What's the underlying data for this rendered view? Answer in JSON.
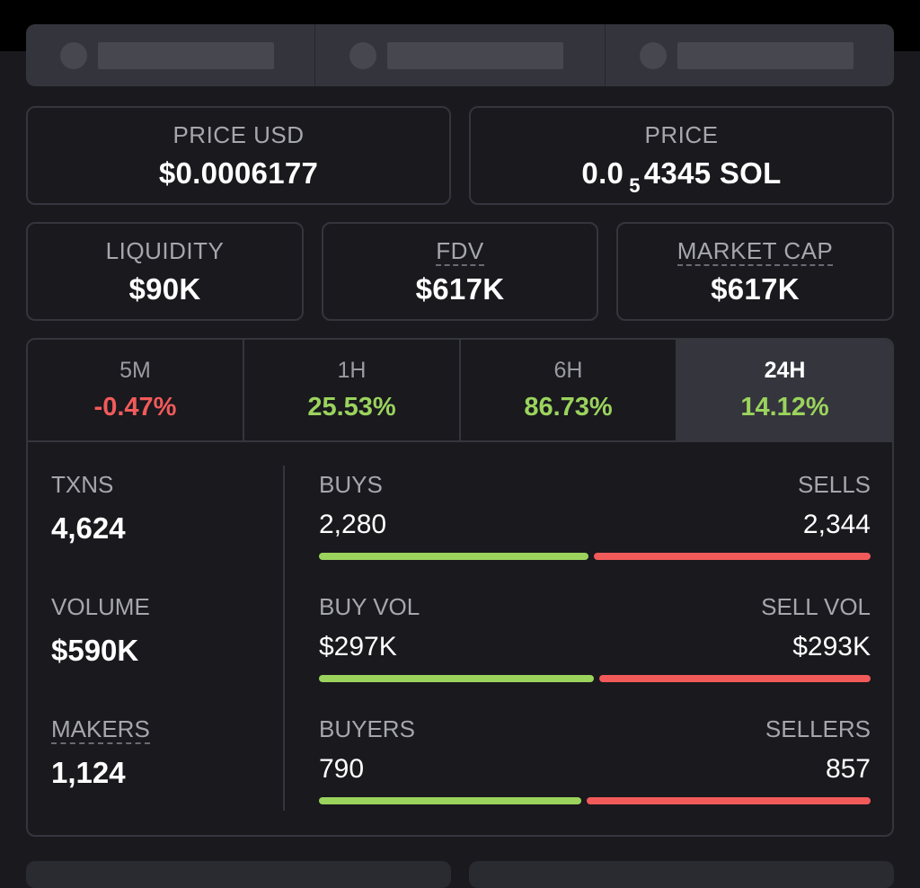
{
  "header": {
    "price_usd": {
      "label": "PRICE USD",
      "value": "$0.0006177"
    },
    "price": {
      "label": "PRICE",
      "prefix": "0.0",
      "subscript": "5",
      "suffix": "4345 SOL"
    }
  },
  "metrics": {
    "liquidity": {
      "label": "LIQUIDITY",
      "value": "$90K"
    },
    "fdv": {
      "label": "FDV",
      "value": "$617K"
    },
    "market_cap": {
      "label": "MARKET CAP",
      "value": "$617K"
    }
  },
  "tabs": [
    {
      "label": "5M",
      "value": "-0.47%",
      "trend": "negative"
    },
    {
      "label": "1H",
      "value": "25.53%",
      "trend": "positive"
    },
    {
      "label": "6H",
      "value": "86.73%",
      "trend": "positive"
    },
    {
      "label": "24H",
      "value": "14.12%",
      "trend": "positive",
      "selected": true
    }
  ],
  "stats": {
    "txns": {
      "label": "TXNS",
      "value": "4,624"
    },
    "volume": {
      "label": "VOLUME",
      "value": "$590K"
    },
    "makers": {
      "label": "MAKERS",
      "value": "1,124"
    },
    "buys_sells": {
      "left_label": "BUYS",
      "left_value": "2,280",
      "right_label": "SELLS",
      "right_value": "2,344",
      "buy_ratio": 0.493
    },
    "buy_sell_vol": {
      "left_label": "BUY VOL",
      "left_value": "$297K",
      "right_label": "SELL VOL",
      "right_value": "$293K",
      "buy_ratio": 0.503
    },
    "buyers_sellers": {
      "left_label": "BUYERS",
      "left_value": "790",
      "right_label": "SELLERS",
      "right_value": "857",
      "buy_ratio": 0.48
    }
  },
  "colors": {
    "positive": "#9bd35d",
    "negative": "#f25a5a",
    "background": "#19191e",
    "border": "#35353d"
  }
}
